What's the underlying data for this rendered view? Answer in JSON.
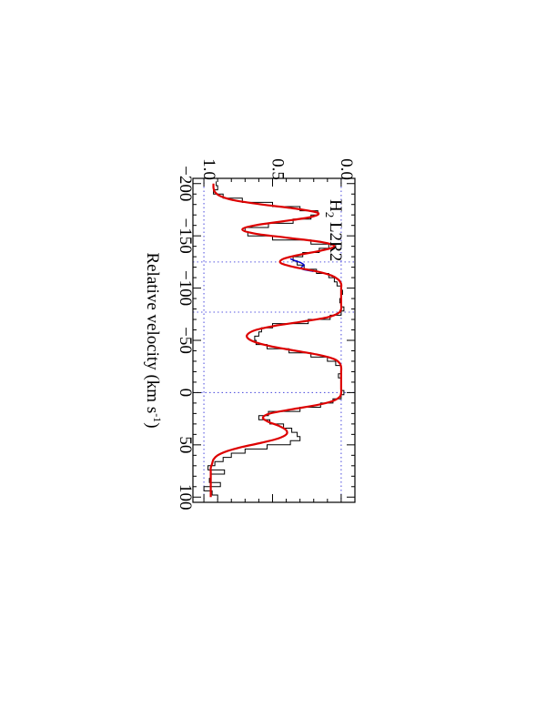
{
  "chart_data": {
    "type": "line",
    "title": "",
    "xlabel": "Relative velocity (km s",
    "xlabel_sup": "-1",
    "xlabel_end": ")",
    "ylabel": "",
    "annotation": {
      "base": "H",
      "subscript": "2",
      "rest": " L2R2",
      "x": -185,
      "y": 0.08
    },
    "orientation": "rotated-90-clockwise",
    "xlim": [
      -205,
      105
    ],
    "ylim": [
      -0.1,
      1.08
    ],
    "x_ticks": [
      -200,
      -150,
      -100,
      -50,
      0,
      50,
      100
    ],
    "x_tick_labels": [
      "−200",
      "−150",
      "−100",
      "−50",
      "0",
      "50",
      "100"
    ],
    "y_ticks": [
      0.0,
      0.5,
      1.0
    ],
    "y_tick_labels": [
      "0.0",
      "0.5",
      "1.0"
    ],
    "reference_lines": {
      "horizontal": [
        1.0,
        0.0
      ],
      "vertical": [
        -125,
        -77,
        0
      ],
      "style": "dotted",
      "color": "#5a5ae0"
    },
    "series": [
      {
        "style": "steps",
        "color": "#000000",
        "x": [
          -200,
          -196,
          -192,
          -188,
          -184,
          -180,
          -176,
          -172,
          -168,
          -164,
          -160,
          -156,
          -152,
          -148,
          -144,
          -140,
          -136,
          -132,
          -128,
          -124,
          -120,
          -116,
          -112,
          -108,
          -104,
          -100,
          -96,
          -92,
          -88,
          -84,
          -80,
          -76,
          -72,
          -68,
          -64,
          -60,
          -56,
          -52,
          -48,
          -44,
          -40,
          -36,
          -32,
          -28,
          -24,
          -20,
          -16,
          -12,
          -8,
          -4,
          0,
          4,
          8,
          12,
          16,
          20,
          24,
          28,
          32,
          36,
          40,
          44,
          48,
          52,
          56,
          60,
          64,
          68,
          72,
          76,
          80,
          84,
          88,
          92,
          96,
          100
        ],
        "y": [
          0.91,
          0.9,
          0.93,
          0.86,
          0.72,
          0.5,
          0.3,
          0.17,
          0.22,
          0.35,
          0.53,
          0.7,
          0.68,
          0.5,
          0.22,
          0.09,
          0.16,
          0.28,
          0.35,
          0.32,
          0.27,
          0.18,
          0.09,
          0.05,
          0.03,
          0.0,
          -0.01,
          0.0,
          0.01,
          0.0,
          -0.02,
          0.0,
          0.08,
          0.24,
          0.5,
          0.58,
          0.6,
          0.63,
          0.62,
          0.54,
          0.38,
          0.22,
          0.1,
          0.04,
          0.0,
          0.0,
          0.02,
          0.0,
          0.0,
          0.0,
          -0.02,
          0.0,
          0.06,
          0.15,
          0.3,
          0.53,
          0.6,
          0.52,
          0.42,
          0.36,
          0.32,
          0.3,
          0.37,
          0.54,
          0.7,
          0.8,
          0.86,
          0.92,
          0.97,
          0.85,
          0.95,
          0.96,
          0.88,
          1.0,
          0.94,
          0.9
        ]
      },
      {
        "style": "line",
        "color": "#0000cc",
        "x": [
          -128,
          -126,
          -124,
          -122,
          -120,
          -118,
          -116
        ],
        "y": [
          0.37,
          0.33,
          0.29,
          0.27,
          0.29,
          0.28,
          0.2
        ]
      },
      {
        "style": "line",
        "color": "#dd0000",
        "x": [
          -200,
          -196,
          -192,
          -188,
          -184,
          -180,
          -176,
          -172,
          -168,
          -164,
          -160,
          -156,
          -152,
          -148,
          -144,
          -140,
          -136,
          -132,
          -128,
          -124,
          -120,
          -116,
          -112,
          -108,
          -104,
          -100,
          -96,
          -92,
          -88,
          -84,
          -80,
          -76,
          -72,
          -68,
          -64,
          -60,
          -56,
          -52,
          -48,
          -44,
          -40,
          -36,
          -32,
          -28,
          -24,
          -20,
          -16,
          -12,
          -8,
          -4,
          0,
          4,
          8,
          12,
          16,
          20,
          24,
          28,
          32,
          36,
          40,
          44,
          48,
          52,
          56,
          60,
          64,
          68,
          72,
          76,
          80,
          84,
          88,
          92,
          96,
          100
        ],
        "y": [
          0.93,
          0.93,
          0.92,
          0.88,
          0.78,
          0.58,
          0.33,
          0.17,
          0.22,
          0.42,
          0.63,
          0.72,
          0.62,
          0.38,
          0.14,
          0.05,
          0.14,
          0.3,
          0.42,
          0.44,
          0.34,
          0.18,
          0.07,
          0.02,
          0.0,
          0.0,
          0.0,
          0.0,
          0.0,
          0.0,
          0.0,
          0.02,
          0.1,
          0.28,
          0.48,
          0.62,
          0.68,
          0.68,
          0.62,
          0.5,
          0.33,
          0.16,
          0.05,
          0.01,
          0.0,
          0.0,
          0.0,
          0.0,
          0.0,
          0.0,
          0.0,
          0.01,
          0.06,
          0.18,
          0.36,
          0.52,
          0.57,
          0.53,
          0.45,
          0.4,
          0.4,
          0.46,
          0.58,
          0.72,
          0.83,
          0.9,
          0.93,
          0.94,
          0.95,
          0.95,
          0.95,
          0.95,
          0.95,
          0.95,
          0.95,
          0.95
        ]
      }
    ]
  }
}
